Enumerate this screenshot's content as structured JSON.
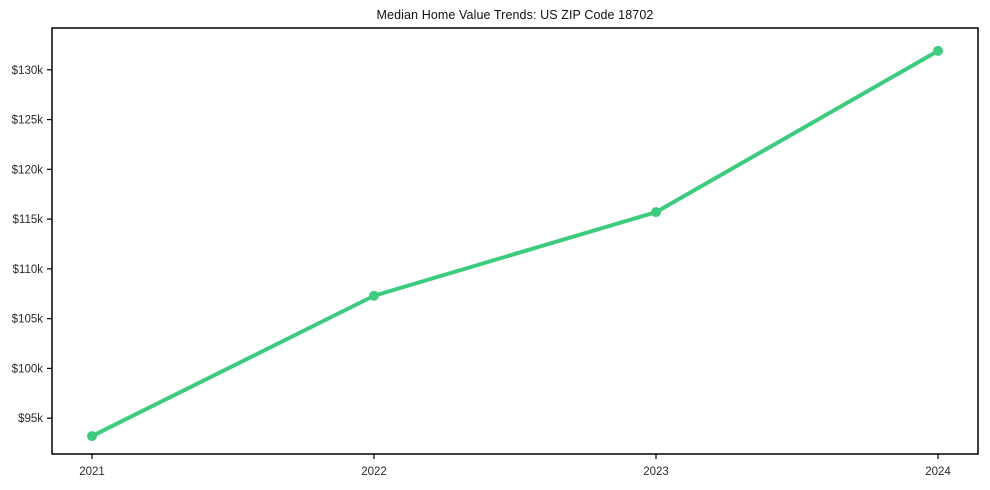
{
  "chart_data": {
    "type": "line",
    "title": "Median Home Value Trends: US ZIP Code 18702",
    "x": [
      "2021",
      "2022",
      "2023",
      "2024"
    ],
    "series": [
      {
        "name": "Median Home Value",
        "values": [
          93200,
          107300,
          115700,
          131900
        ]
      }
    ],
    "xlabel": "",
    "ylabel": "",
    "ylim": [
      91400,
      134200
    ],
    "yticks": [
      95000,
      100000,
      105000,
      110000,
      115000,
      120000,
      125000,
      130000
    ],
    "ytick_labels": [
      "$95k",
      "$100k",
      "$105k",
      "$110k",
      "$115k",
      "$120k",
      "$125k",
      "$130k"
    ],
    "grid": false,
    "legend_position": "none",
    "line_color": "#3dcc7e",
    "marker": "circle",
    "border_color": "#000000",
    "background_color": "#ffffff"
  }
}
